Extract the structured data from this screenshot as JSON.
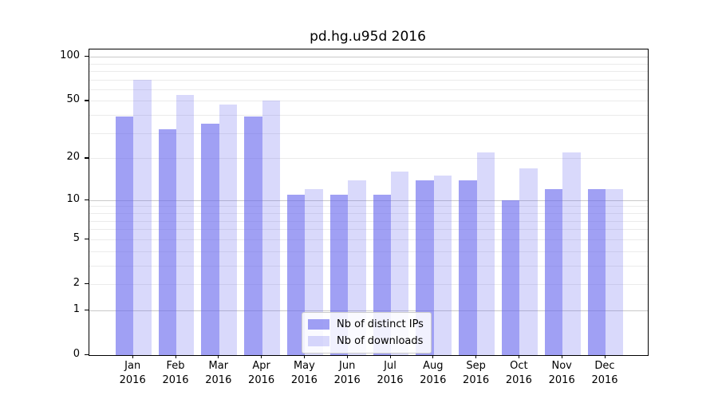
{
  "title": "pd.hg.u95d 2016",
  "legend": {
    "items": [
      {
        "label": "Nb of distinct IPs"
      },
      {
        "label": "Nb of downloads"
      }
    ]
  },
  "colors": {
    "bar_base": "#6666ee",
    "ips_fill": "rgba(102,102,238,0.62)",
    "downloads_fill": "rgba(102,102,238,0.25)",
    "grid_decade": "#c9c9c9",
    "grid_minor": "#ebebeb",
    "spine": "#000000",
    "text": "#000000"
  },
  "chart_data": {
    "type": "bar",
    "title": "pd.hg.u95d 2016",
    "categories": [
      "Jan",
      "Feb",
      "Mar",
      "Apr",
      "May",
      "Jun",
      "Jul",
      "Aug",
      "Sep",
      "Oct",
      "Nov",
      "Dec"
    ],
    "year": "2016",
    "series": [
      {
        "name": "Nb of distinct IPs",
        "values": [
          39,
          32,
          35,
          39,
          11,
          11,
          11,
          14,
          14,
          10,
          12,
          12
        ]
      },
      {
        "name": "Nb of downloads",
        "values": [
          70,
          55,
          47,
          50,
          12,
          14,
          16,
          15,
          22,
          17,
          22,
          12
        ]
      }
    ],
    "yscale": "log1p",
    "ylim": [
      0,
      112
    ],
    "yticks": [
      0,
      1,
      2,
      5,
      10,
      20,
      50,
      100
    ],
    "grid_decades": [
      1,
      10,
      100
    ],
    "grid_minor": [
      2,
      3,
      4,
      5,
      6,
      7,
      8,
      9,
      20,
      30,
      40,
      50,
      60,
      70,
      80,
      90
    ],
    "grid": true,
    "legend_position": "lower center"
  }
}
